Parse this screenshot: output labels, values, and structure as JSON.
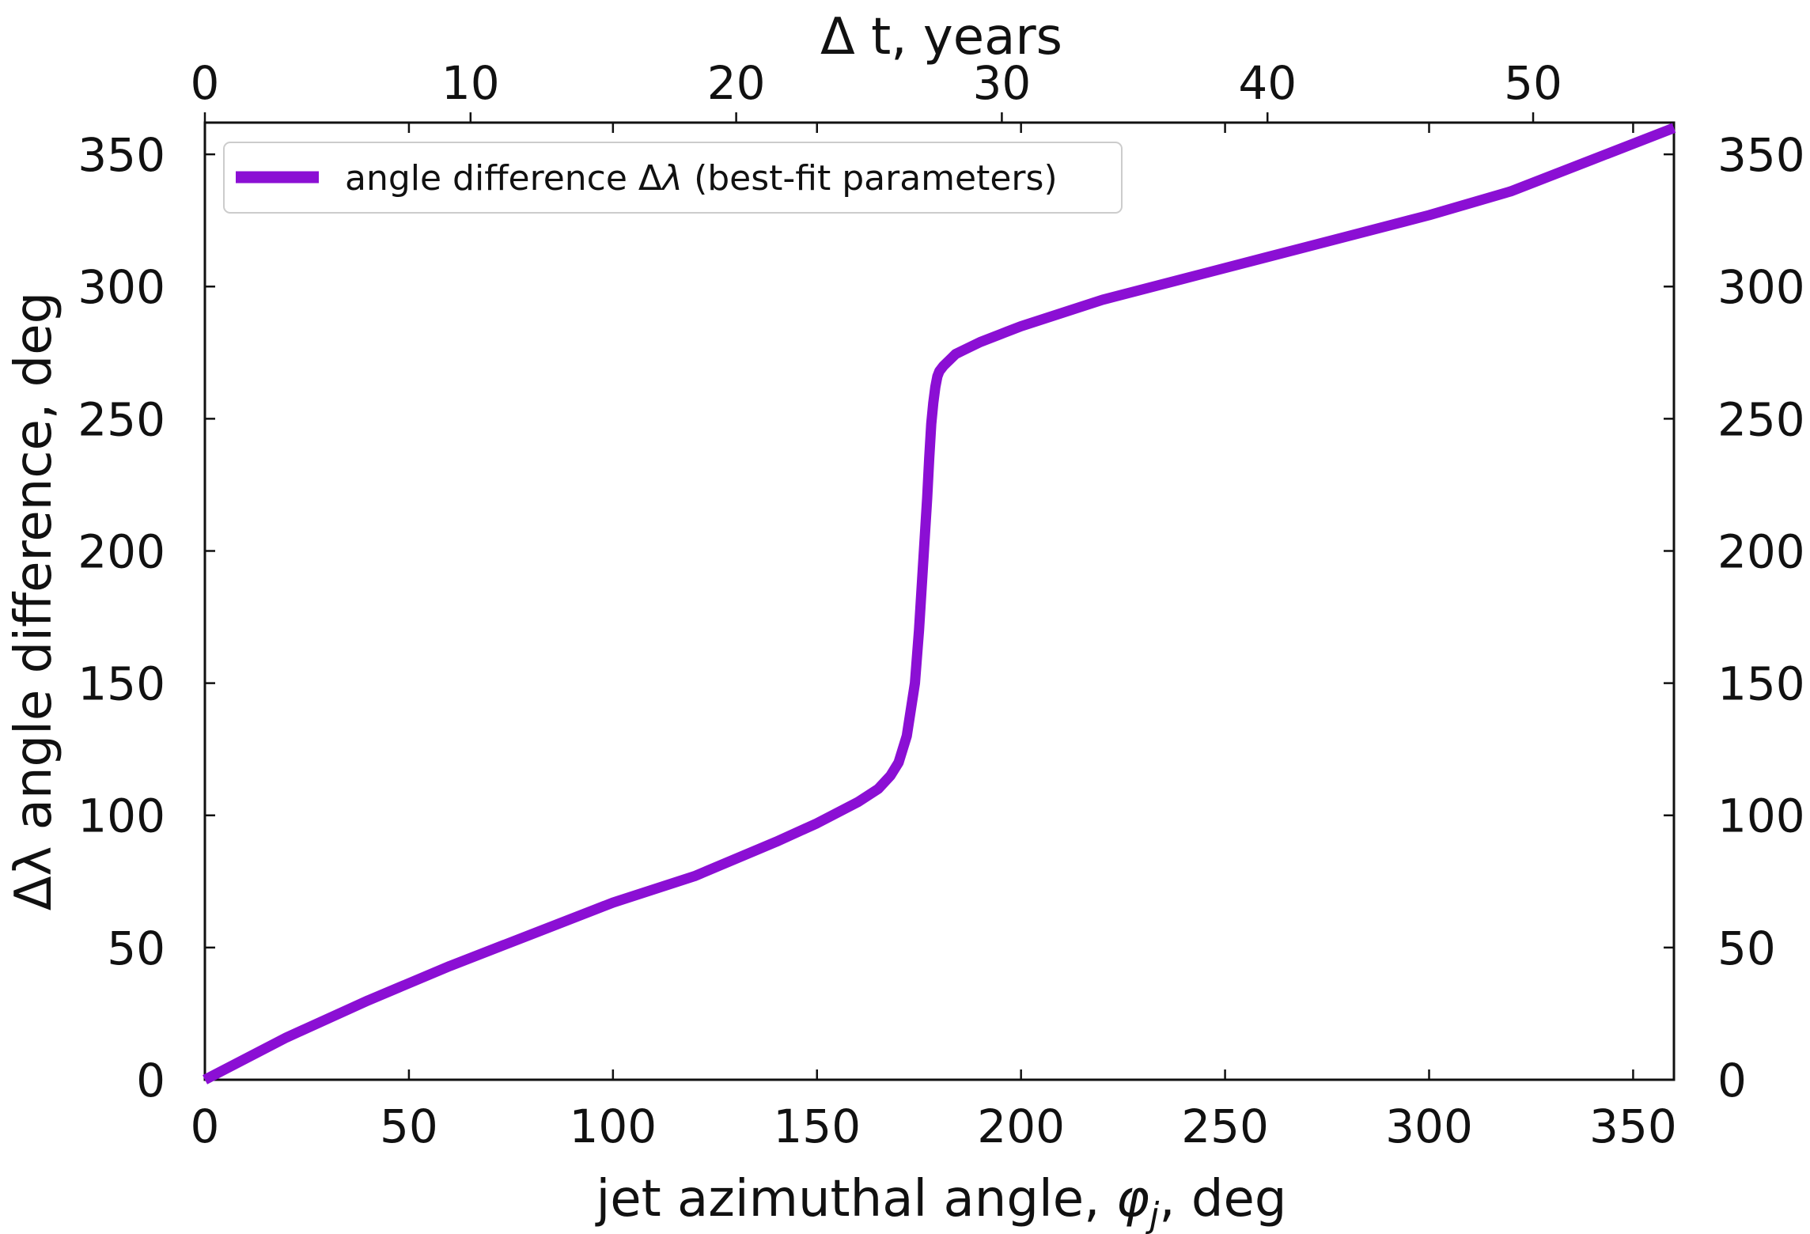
{
  "chart_data": {
    "type": "line",
    "title": "",
    "xlabel_prefix": "jet azimuthal angle, ",
    "xlabel_symbol": "φ",
    "xlabel_subscript": "j",
    "xlabel_suffix": ", deg",
    "ylabel": "Δλ angle difference, deg",
    "top_xlabel": "Δ t, years",
    "xlim": [
      0,
      360
    ],
    "ylim": [
      0,
      362
    ],
    "top_xlim": [
      0,
      55.3
    ],
    "x_ticks": [
      0,
      50,
      100,
      150,
      200,
      250,
      300,
      350
    ],
    "y_ticks": [
      0,
      50,
      100,
      150,
      200,
      250,
      300,
      350
    ],
    "top_x_ticks": [
      0,
      10,
      20,
      30,
      40,
      50
    ],
    "x_tick_labels": [
      "0",
      "50",
      "100",
      "150",
      "200",
      "250",
      "300",
      "350"
    ],
    "y_tick_labels": [
      "0",
      "50",
      "100",
      "150",
      "200",
      "250",
      "300",
      "350"
    ],
    "top_x_tick_labels": [
      "0",
      "10",
      "20",
      "30",
      "40",
      "50"
    ],
    "grid": false,
    "legend_position": "top-left",
    "series": [
      {
        "name": "angle difference Δλ (best-fit parameters)",
        "legend_text": "angle difference Δ",
        "legend_symbol": "λ",
        "legend_suffix": " (best-fit parameters)",
        "color": "#8b0fd4",
        "x": [
          0,
          10,
          20,
          40,
          60,
          80,
          100,
          120,
          140,
          150,
          160,
          165,
          168,
          170,
          172,
          174,
          175,
          176,
          177,
          177.5,
          178,
          178.5,
          179,
          179.5,
          180,
          180.5,
          181,
          182,
          183,
          184,
          186,
          188,
          190,
          195,
          200,
          210,
          220,
          240,
          260,
          280,
          300,
          320,
          340,
          360
        ],
        "y": [
          0,
          8,
          16,
          30,
          43,
          55,
          67,
          77,
          90,
          97,
          105,
          110,
          115,
          120,
          130,
          150,
          170,
          195,
          220,
          235,
          248,
          256,
          262,
          266,
          268,
          269,
          270,
          271.5,
          273,
          274.5,
          276,
          277.5,
          279,
          282,
          285,
          290,
          295,
          303,
          311,
          319,
          327,
          336,
          348,
          360
        ]
      }
    ]
  }
}
